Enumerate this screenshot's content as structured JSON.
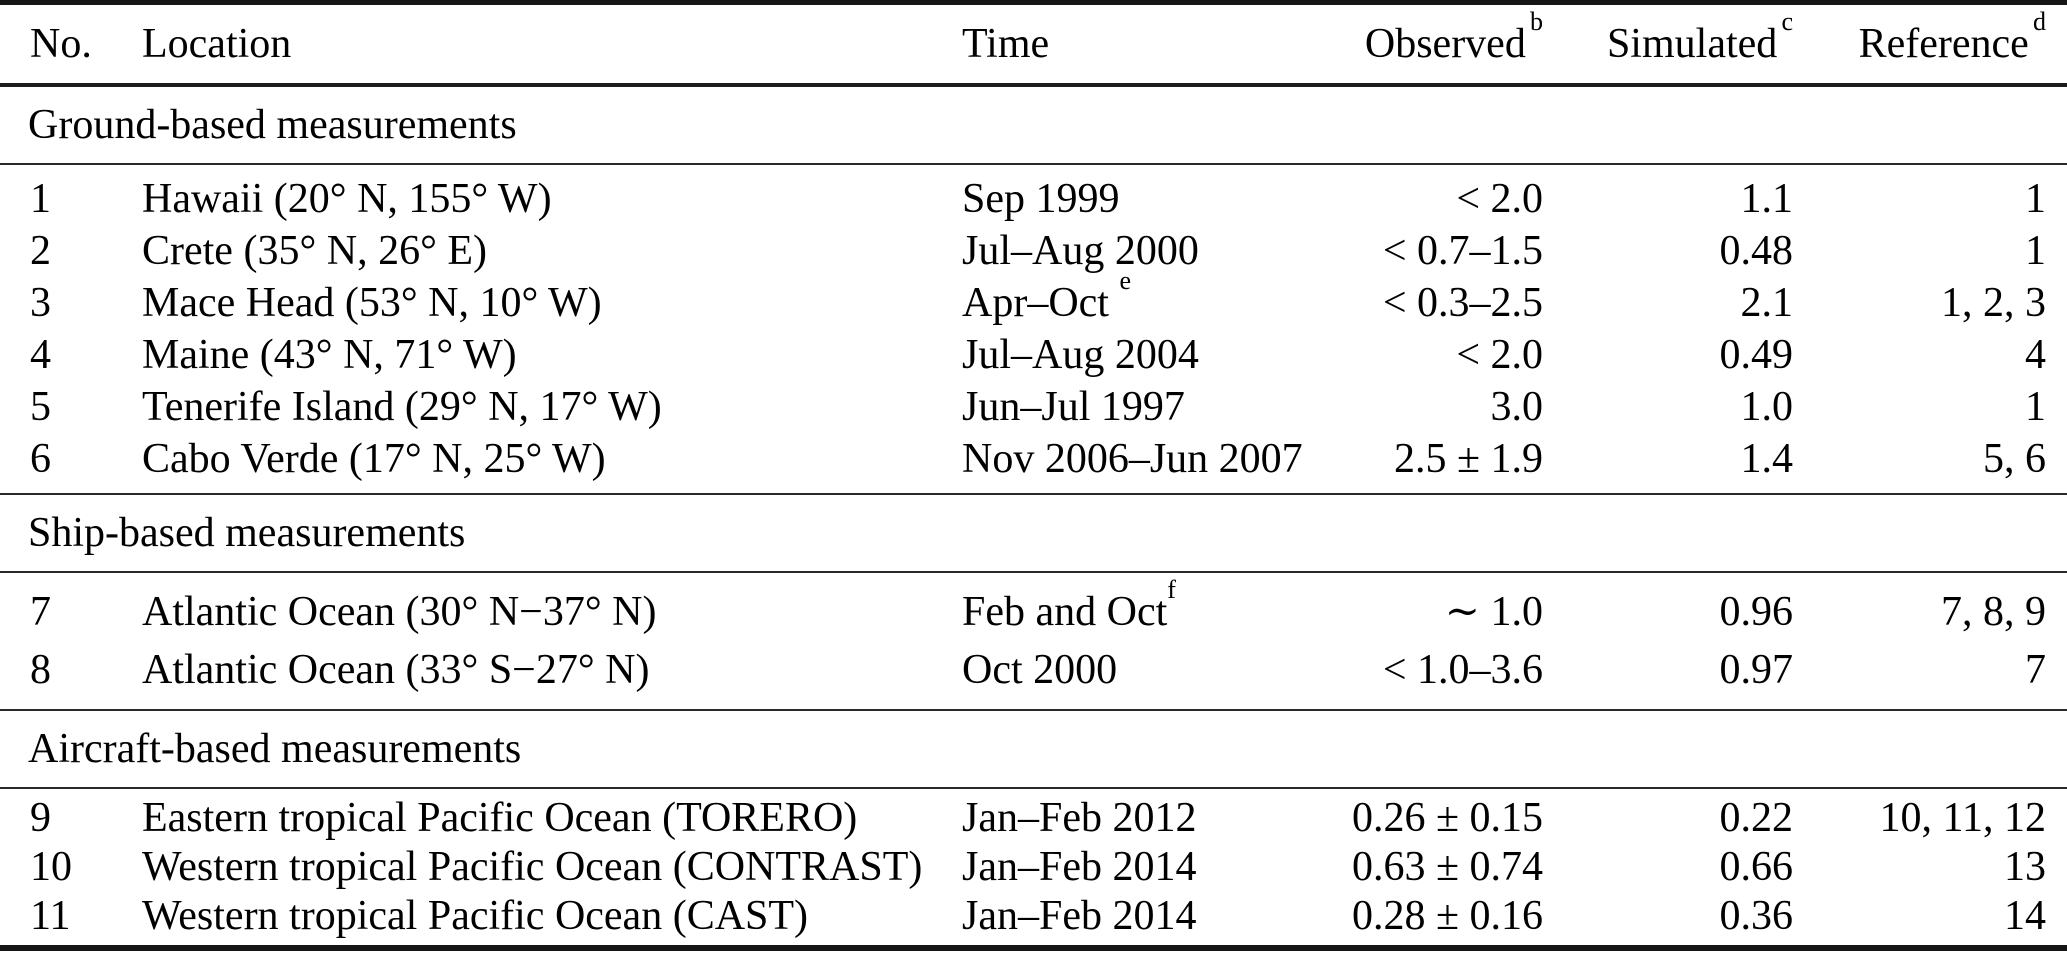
{
  "colors": {
    "background": "#ffffff",
    "text": "#000000",
    "rule": "#1c1c1c"
  },
  "table": {
    "columns": [
      {
        "label": "No.",
        "sup": ""
      },
      {
        "label": "Location",
        "sup": ""
      },
      {
        "label": "Time",
        "sup": ""
      },
      {
        "label": "Observed",
        "sup": "b"
      },
      {
        "label": "Simulated",
        "sup": "c"
      },
      {
        "label": "Reference",
        "sup": "d"
      }
    ],
    "sections": [
      {
        "title": "Ground-based measurements",
        "rows": [
          {
            "no": "1",
            "location": "Hawaii (20° N, 155° W)",
            "time": "Sep 1999",
            "time_sup": "",
            "observed": "< 2.0",
            "simulated": "1.1",
            "reference": "1"
          },
          {
            "no": "2",
            "location": "Crete (35° N, 26° E)",
            "time": "Jul–Aug 2000",
            "time_sup": "",
            "observed": "< 0.7–1.5",
            "simulated": "0.48",
            "reference": "1"
          },
          {
            "no": "3",
            "location": "Mace Head (53° N, 10° W)",
            "time": "Apr–Oct ",
            "time_sup": "e",
            "observed": "< 0.3–2.5",
            "simulated": "2.1",
            "reference": "1, 2, 3"
          },
          {
            "no": "4",
            "location": "Maine (43° N, 71° W)",
            "time": "Jul–Aug 2004",
            "time_sup": "",
            "observed": "< 2.0",
            "simulated": "0.49",
            "reference": "4"
          },
          {
            "no": "5",
            "location": "Tenerife Island (29° N, 17° W)",
            "time": "Jun–Jul 1997",
            "time_sup": "",
            "observed": "3.0",
            "simulated": "1.0",
            "reference": "1"
          },
          {
            "no": "6",
            "location": "Cabo Verde (17° N, 25° W)",
            "time": "Nov 2006–Jun 2007",
            "time_sup": "",
            "observed": "2.5 ± 1.9",
            "simulated": "1.4",
            "reference": "5, 6"
          }
        ]
      },
      {
        "title": "Ship-based measurements",
        "rows": [
          {
            "no": "7",
            "location": "Atlantic Ocean (30° N−37° N)",
            "time": "Feb and Oct",
            "time_sup": "f",
            "observed": "∼ 1.0",
            "simulated": "0.96",
            "reference": "7, 8, 9"
          },
          {
            "no": "8",
            "location": "Atlantic Ocean (33° S−27° N)",
            "time": "Oct 2000",
            "time_sup": "",
            "observed": "< 1.0–3.6",
            "simulated": "0.97",
            "reference": "7"
          }
        ]
      },
      {
        "title": "Aircraft-based measurements",
        "rows": [
          {
            "no": "9",
            "location": "Eastern tropical Pacific Ocean (TORERO)",
            "time": "Jan–Feb 2012",
            "time_sup": "",
            "observed": "0.26 ± 0.15",
            "simulated": "0.22",
            "reference": "10, 11, 12"
          },
          {
            "no": "10",
            "location": "Western tropical Pacific Ocean (CONTRAST)",
            "time": "Jan–Feb 2014",
            "time_sup": "",
            "observed": "0.63 ± 0.74",
            "simulated": "0.66",
            "reference": "13"
          },
          {
            "no": "11",
            "location": "Western tropical Pacific Ocean (CAST)",
            "time": "Jan–Feb 2014",
            "time_sup": "",
            "observed": "0.28 ± 0.16",
            "simulated": "0.36",
            "reference": "14"
          }
        ]
      }
    ]
  }
}
